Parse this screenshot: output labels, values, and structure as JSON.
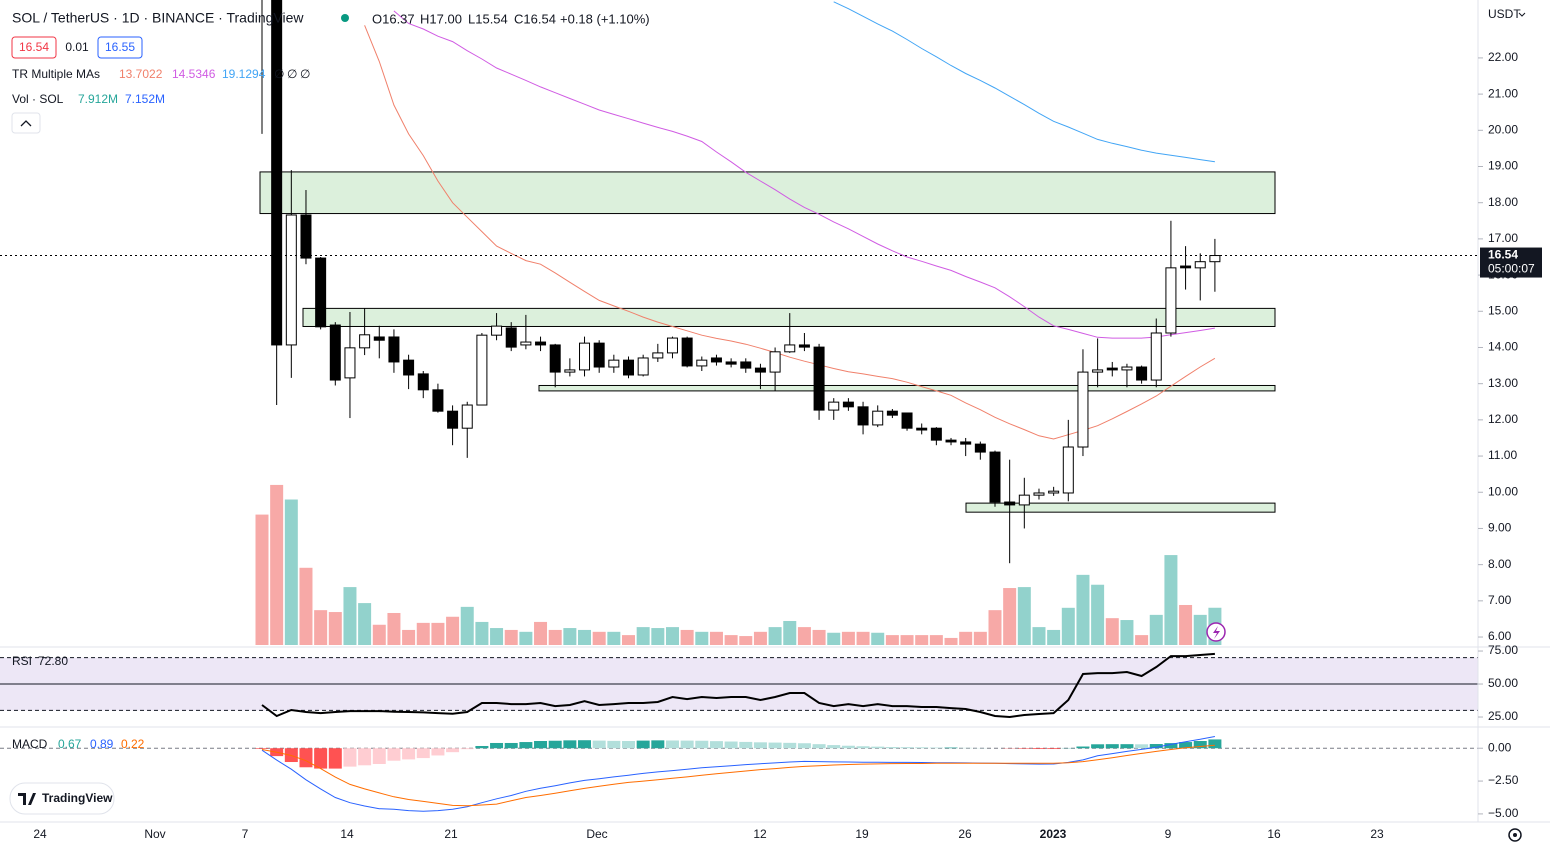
{
  "header": {
    "title": "SOL / TetherUS · 1D · BINANCE · TradingView",
    "ohlc": [
      "O16.37",
      "H17.00",
      "L15.54",
      "C16.54",
      "+0.18 (+1.10%)"
    ],
    "bid": "16.54",
    "spread": "0.01",
    "ask": "16.55",
    "ma_legend": "TR Multiple MAs",
    "ma_values": [
      "13.7022",
      "14.5346",
      "19.1294"
    ],
    "ma_empty": [
      "∅",
      "∅",
      "∅"
    ],
    "vol_legend": "Vol · SOL",
    "vol_values": [
      "7.912M",
      "7.152M"
    ],
    "currency": "USDT",
    "countdown": "05:00:07",
    "logo": "TradingView"
  },
  "time_axis": {
    "labels": [
      "24",
      "Nov",
      "7",
      "14",
      "21",
      "Dec",
      "12",
      "19",
      "26",
      "2023",
      "9",
      "16",
      "23"
    ]
  },
  "chart_data": [
    {
      "type": "candlestick",
      "up_color": "#ffffff",
      "down_color": "#000000",
      "border_color": "#000000",
      "grid": false,
      "open": [
        24.5,
        23.9,
        14.07,
        17.66,
        16.47,
        14.62,
        13.16,
        13.99,
        14.29,
        14.29,
        13.65,
        13.27,
        12.83,
        12.24,
        11.77,
        12.41,
        14.34,
        14.54,
        14.07,
        14.15,
        14.07,
        13.32,
        13.38,
        14.12,
        13.46,
        13.65,
        13.24,
        13.71,
        13.85,
        14.26,
        13.49,
        13.71,
        13.6,
        13.6,
        13.43,
        13.32,
        13.88,
        14.07,
        14.01,
        12.27,
        12.49,
        12.36,
        11.86,
        12.24,
        12.19,
        11.77,
        11.77,
        11.44,
        11.39,
        11.33,
        11.11,
        9.73,
        9.65,
        9.92,
        9.98,
        9.98,
        11.25,
        13.32,
        13.43,
        13.38,
        13.46,
        13.1,
        14.4,
        16.25,
        16.2,
        16.37
      ],
      "high": [
        25.5,
        24.0,
        18.9,
        18.35,
        16.5,
        14.7,
        14.98,
        15.09,
        14.6,
        14.5,
        13.8,
        13.35,
        13.0,
        12.4,
        12.5,
        14.4,
        14.95,
        14.7,
        14.9,
        14.3,
        14.1,
        13.7,
        14.3,
        14.2,
        13.8,
        13.75,
        13.8,
        14.1,
        14.3,
        14.3,
        13.75,
        13.8,
        13.7,
        13.7,
        13.55,
        14.0,
        14.95,
        14.4,
        14.1,
        12.6,
        12.6,
        12.5,
        12.4,
        12.3,
        12.2,
        11.9,
        11.8,
        11.5,
        11.5,
        11.4,
        11.15,
        10.9,
        10.4,
        10.1,
        10.15,
        12.0,
        13.95,
        14.25,
        13.6,
        13.55,
        13.5,
        14.8,
        17.5,
        16.8,
        16.6,
        17.0
      ],
      "low": [
        19.9,
        12.41,
        13.16,
        16.3,
        14.5,
        12.95,
        12.05,
        13.79,
        13.7,
        13.3,
        12.85,
        12.6,
        12.2,
        11.3,
        10.95,
        12.4,
        14.2,
        13.9,
        13.95,
        13.9,
        12.9,
        13.2,
        13.2,
        13.3,
        13.3,
        13.15,
        13.2,
        13.6,
        13.7,
        13.45,
        13.35,
        13.5,
        13.45,
        13.3,
        12.85,
        12.8,
        13.85,
        13.9,
        12.0,
        12.0,
        12.25,
        11.6,
        11.8,
        12.05,
        11.7,
        11.6,
        11.3,
        11.3,
        11.0,
        10.9,
        9.6,
        8.04,
        9.0,
        9.8,
        9.9,
        9.75,
        11.0,
        12.9,
        13.2,
        12.9,
        13.0,
        12.9,
        14.3,
        15.6,
        15.3,
        15.54
      ],
      "close": [
        23.9,
        14.07,
        17.66,
        16.47,
        14.57,
        13.1,
        13.99,
        14.35,
        14.2,
        13.6,
        13.24,
        12.83,
        12.24,
        11.77,
        12.41,
        14.34,
        14.59,
        14.01,
        14.15,
        14.07,
        13.32,
        13.38,
        14.12,
        13.46,
        13.65,
        13.24,
        13.71,
        13.85,
        14.26,
        13.49,
        13.65,
        13.6,
        13.54,
        13.43,
        13.32,
        13.88,
        14.07,
        14.01,
        12.27,
        12.49,
        12.36,
        11.86,
        12.24,
        12.13,
        11.77,
        11.72,
        11.44,
        11.39,
        11.33,
        11.11,
        9.73,
        9.65,
        9.92,
        9.98,
        10.03,
        11.25,
        13.32,
        13.38,
        13.38,
        13.46,
        13.1,
        14.4,
        16.2,
        16.2,
        16.37,
        16.54
      ],
      "ma_lines": [
        {
          "color": "#f0806b",
          "values": [
            null,
            null,
            null,
            null,
            null,
            null,
            null,
            22.9,
            21.9,
            20.7,
            19.9,
            19.3,
            18.6,
            18.0,
            17.6,
            17.2,
            16.8,
            16.6,
            16.4,
            16.3,
            16.06,
            15.8,
            15.55,
            15.3,
            15.15,
            15.0,
            14.84,
            14.7,
            14.58,
            14.46,
            14.34,
            14.25,
            14.18,
            14.09,
            13.98,
            13.86,
            13.73,
            13.62,
            13.52,
            13.42,
            13.33,
            13.27,
            13.2,
            13.14,
            13.04,
            12.92,
            12.8,
            12.68,
            12.47,
            12.28,
            12.07,
            11.89,
            11.73,
            11.56,
            11.47,
            11.59,
            11.71,
            11.84,
            12.03,
            12.23,
            12.44,
            12.66,
            12.93,
            13.2,
            13.46,
            13.7022
          ]
        },
        {
          "color": "#d05ce3",
          "values": [
            null,
            null,
            null,
            null,
            null,
            null,
            null,
            null,
            null,
            23.3,
            22.95,
            22.8,
            22.6,
            22.45,
            22.2,
            21.97,
            21.72,
            21.55,
            21.38,
            21.2,
            21.04,
            20.88,
            20.72,
            20.56,
            20.44,
            20.32,
            20.2,
            20.08,
            19.97,
            19.84,
            19.69,
            19.4,
            19.13,
            18.84,
            18.6,
            18.36,
            18.1,
            17.87,
            17.68,
            17.47,
            17.28,
            17.07,
            16.86,
            16.67,
            16.5,
            16.38,
            16.25,
            16.13,
            15.96,
            15.81,
            15.65,
            15.4,
            15.13,
            14.84,
            14.6,
            14.5,
            14.39,
            14.28,
            14.26,
            14.26,
            14.26,
            14.29,
            14.35,
            14.41,
            14.47,
            14.5346
          ]
        },
        {
          "color": "#42a5f5",
          "values": [
            null,
            null,
            null,
            null,
            null,
            null,
            null,
            null,
            null,
            null,
            null,
            null,
            null,
            null,
            null,
            null,
            null,
            null,
            null,
            null,
            null,
            null,
            null,
            null,
            null,
            null,
            null,
            null,
            null,
            null,
            null,
            null,
            null,
            null,
            null,
            null,
            null,
            null,
            null,
            23.55,
            23.36,
            23.15,
            22.94,
            22.74,
            22.51,
            22.26,
            22.03,
            21.79,
            21.57,
            21.38,
            21.17,
            20.94,
            20.71,
            20.47,
            20.25,
            20.09,
            19.92,
            19.75,
            19.64,
            19.55,
            19.45,
            19.37,
            19.31,
            19.25,
            19.19,
            19.1294
          ]
        }
      ],
      "zones": [
        {
          "low": 17.7,
          "high": 18.85
        },
        {
          "low": 14.58,
          "high": 15.08
        },
        {
          "low": 12.8,
          "high": 12.95
        },
        {
          "low": 9.45,
          "high": 9.7
        }
      ],
      "zone_color": "#dcf0dc",
      "ylim": [
        5.78,
        23.6
      ],
      "yticks": [
        {
          "value": 6,
          "label": "6.00"
        },
        {
          "value": 7,
          "label": "7.00"
        },
        {
          "value": 8,
          "label": "8.00"
        },
        {
          "value": 9,
          "label": "9.00"
        },
        {
          "value": 10,
          "label": "10.00"
        },
        {
          "value": 11,
          "label": "11.00"
        },
        {
          "value": 12,
          "label": "12.00"
        },
        {
          "value": 13,
          "label": "13.00"
        },
        {
          "value": 14,
          "label": "14.00"
        },
        {
          "value": 15,
          "label": "15.00"
        },
        {
          "value": 16,
          "label": "16.00"
        },
        {
          "value": 17,
          "label": "17.00"
        },
        {
          "value": 18,
          "label": "18.00"
        },
        {
          "value": 19,
          "label": "19.00"
        },
        {
          "value": 20,
          "label": "20.00"
        },
        {
          "value": 21,
          "label": "21.00"
        },
        {
          "value": 22,
          "label": "22.00"
        }
      ]
    },
    {
      "type": "volume",
      "up_color": "#92d2cc",
      "down_color": "#f7a9a7",
      "ylim": [
        0,
        137
      ],
      "values": [
        27.7,
        34.0,
        30.9,
        16.4,
        7.4,
        7.0,
        12.3,
        8.9,
        4.3,
        6.8,
        3.2,
        4.7,
        4.7,
        6.0,
        8.1,
        4.9,
        3.6,
        3.2,
        2.8,
        4.9,
        3.2,
        3.6,
        3.2,
        2.8,
        2.8,
        2.1,
        3.8,
        3.6,
        3.8,
        3.2,
        2.8,
        2.8,
        2.1,
        1.9,
        2.8,
        3.8,
        5.1,
        3.8,
        3.2,
        2.6,
        2.8,
        2.8,
        2.6,
        2.1,
        2.1,
        2.1,
        2.1,
        1.5,
        2.8,
        2.8,
        7.4,
        12.1,
        12.3,
        3.8,
        3.2,
        7.9,
        14.9,
        12.8,
        5.7,
        5.3,
        2.1,
        6.4,
        19.1,
        8.5,
        6.4,
        7.912
      ]
    },
    {
      "type": "rsi",
      "title": "RSI",
      "value_label": "72.80",
      "color": "#000000",
      "band_color": "#ede7f6",
      "ylim": [
        18.2,
        77.3
      ],
      "levels": [
        70,
        50,
        30
      ],
      "yticks": [
        {
          "value": 75,
          "label": "75.00"
        },
        {
          "value": 50,
          "label": "50.00"
        },
        {
          "value": 25,
          "label": "25.00"
        }
      ],
      "values": [
        34.1,
        25.8,
        30.3,
        28.8,
        28.0,
        28.8,
        29.5,
        29.5,
        29.5,
        29.0,
        28.8,
        28.5,
        28.0,
        27.5,
        28.8,
        35.6,
        35.6,
        34.8,
        34.8,
        35.6,
        33.3,
        34.1,
        37.1,
        34.1,
        34.8,
        35.6,
        35.6,
        36.4,
        40.2,
        38.6,
        40.2,
        39.4,
        40.2,
        40.2,
        37.9,
        40.2,
        43.2,
        43.2,
        35.6,
        33.3,
        34.8,
        33.3,
        34.8,
        33.3,
        33.3,
        32.6,
        32.6,
        31.8,
        31.1,
        28.8,
        25.8,
        25.0,
        26.5,
        27.3,
        28.0,
        37.9,
        57.6,
        58.3,
        58.3,
        59.1,
        56.1,
        62.9,
        71.2,
        71.2,
        72.0,
        72.8
      ]
    },
    {
      "type": "macd",
      "title": "MACD",
      "value_labels": [
        "0.67",
        "0.89",
        "0.22"
      ],
      "macd_color": "#2962ff",
      "signal_color": "#ff6d00",
      "hist_colors": [
        "#26a69a",
        "#b2dfdb",
        "#ffcdd2",
        "#ff5252"
      ],
      "ylim": [
        -5.54,
        1.54
      ],
      "yticks": [
        {
          "value": 0,
          "label": "0.00"
        },
        {
          "value": -2.5,
          "label": "−2.50"
        },
        {
          "value": -5,
          "label": "−5.00"
        }
      ],
      "macd": [
        -0.15,
        -0.9,
        -1.6,
        -2.4,
        -3.1,
        -3.75,
        -4.15,
        -4.4,
        -4.6,
        -4.65,
        -4.75,
        -4.8,
        -4.75,
        -4.65,
        -4.45,
        -4.15,
        -3.85,
        -3.6,
        -3.28,
        -3.05,
        -2.85,
        -2.64,
        -2.45,
        -2.32,
        -2.18,
        -2.05,
        -1.92,
        -1.8,
        -1.7,
        -1.6,
        -1.49,
        -1.41,
        -1.33,
        -1.25,
        -1.18,
        -1.12,
        -1.05,
        -1.0,
        -1.02,
        -1.04,
        -1.05,
        -1.06,
        -1.07,
        -1.08,
        -1.08,
        -1.09,
        -1.1,
        -1.1,
        -1.12,
        -1.13,
        -1.15,
        -1.17,
        -1.19,
        -1.21,
        -1.2,
        -1.08,
        -0.89,
        -0.58,
        -0.41,
        -0.24,
        -0.09,
        0.08,
        0.29,
        0.5,
        0.68,
        0.89
      ],
      "signal": [
        -0.1,
        -0.3,
        -0.55,
        -0.95,
        -1.55,
        -2.2,
        -2.75,
        -3.1,
        -3.4,
        -3.7,
        -3.9,
        -4.05,
        -4.2,
        -4.35,
        -4.38,
        -4.32,
        -4.25,
        -4.0,
        -3.75,
        -3.6,
        -3.42,
        -3.24,
        -3.06,
        -2.9,
        -2.74,
        -2.6,
        -2.5,
        -2.4,
        -2.29,
        -2.18,
        -2.06,
        -1.95,
        -1.84,
        -1.73,
        -1.63,
        -1.55,
        -1.46,
        -1.38,
        -1.33,
        -1.28,
        -1.24,
        -1.21,
        -1.19,
        -1.17,
        -1.16,
        -1.16,
        -1.15,
        -1.15,
        -1.15,
        -1.15,
        -1.15,
        -1.15,
        -1.15,
        -1.15,
        -1.14,
        -1.1,
        -1.02,
        -0.88,
        -0.72,
        -0.55,
        -0.39,
        -0.24,
        -0.1,
        0.03,
        0.13,
        0.22
      ],
      "histogram": [
        -0.05,
        -0.6,
        -1.05,
        -1.45,
        -1.55,
        -1.55,
        -1.4,
        -1.3,
        -1.2,
        -0.95,
        -0.85,
        -0.75,
        -0.55,
        -0.3,
        -0.07,
        0.17,
        0.4,
        0.4,
        0.47,
        0.55,
        0.57,
        0.6,
        0.61,
        0.58,
        0.56,
        0.55,
        0.58,
        0.6,
        0.59,
        0.58,
        0.57,
        0.54,
        0.51,
        0.48,
        0.45,
        0.43,
        0.41,
        0.38,
        0.31,
        0.24,
        0.19,
        0.15,
        0.12,
        0.09,
        0.08,
        0.07,
        0.05,
        0.05,
        0.03,
        0.02,
        0,
        -0.02,
        -0.04,
        -0.06,
        -0.06,
        0.02,
        0.13,
        0.3,
        0.31,
        0.31,
        0.3,
        0.32,
        0.39,
        0.47,
        0.55,
        0.67
      ]
    }
  ]
}
